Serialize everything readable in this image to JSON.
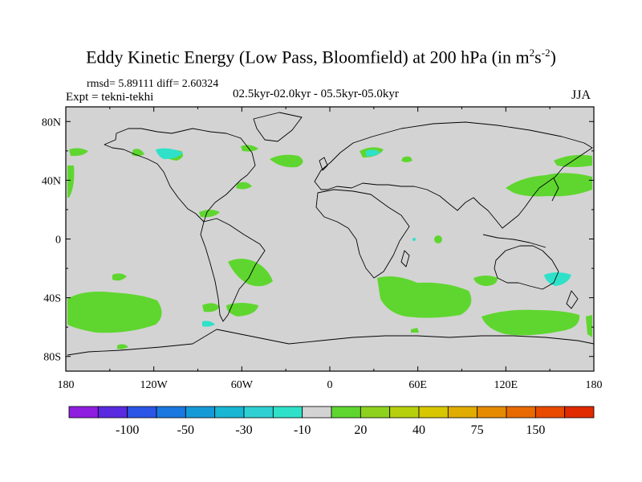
{
  "title": {
    "prefix": "Eddy Kinetic Energy (Low Pass, Bloomfield) at 200 hPa (in m",
    "sup1": "2",
    "mid": "s",
    "sup2": "-2",
    "suffix": ")"
  },
  "stats_line": "rmsd= 5.89111 diff= 2.60324",
  "experiment_line": "Expt = tekni-tekhi",
  "period_line": "02.5kyr-02.0kyr - 05.5kyr-05.0kyr",
  "season": "JJA",
  "colors": {
    "ocean_gray": "#d3d3d3",
    "green": "#5fd62f",
    "cyan": "#2fe1c9"
  },
  "map": {
    "projection": "cylindrical equidistant",
    "lon_range": [
      -180,
      180
    ],
    "lat_range": [
      -90,
      90
    ],
    "lat_ticks": [
      "80N",
      "40N",
      "0",
      "40S",
      "80S"
    ],
    "lat_tick_values": [
      80,
      40,
      0,
      -40,
      -80
    ],
    "lon_ticks": [
      "180",
      "120W",
      "60W",
      "0",
      "60E",
      "120E",
      "180"
    ],
    "lon_tick_values": [
      -180,
      -120,
      -60,
      0,
      60,
      120,
      180
    ]
  },
  "colorbar": {
    "colors": [
      "#8f1ee0",
      "#5a2ae0",
      "#2a55e6",
      "#1a78e0",
      "#159ad8",
      "#17b6d3",
      "#2fd0d2",
      "#2fe1c9",
      "#d3d3d3",
      "#5fd62f",
      "#8ed21e",
      "#b6d00d",
      "#d8c700",
      "#e0ac00",
      "#e68a00",
      "#e86a00",
      "#e84a00",
      "#e02a00"
    ],
    "labels": [
      "-100",
      "-50",
      "-30",
      "-10",
      "20",
      "40",
      "75",
      "150"
    ]
  }
}
